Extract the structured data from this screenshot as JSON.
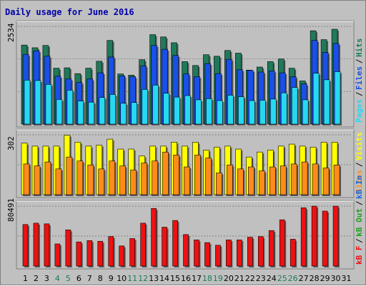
{
  "title": "Daily usage for June 2016",
  "colors": {
    "background": "#c0c0c0",
    "plot_bg": "#c0c0c0",
    "title": "#0000aa",
    "hits": "#1f7a5a",
    "files": "#1a4fe8",
    "pages": "#26d8f2",
    "visits": "#ffff00",
    "sites": "#ff8c1a",
    "kbin": "#1a6ae0",
    "kbout": "#20a020",
    "kbf": "#ee1111",
    "weekend_label": "#1f7a5a",
    "weekday_label": "#000000"
  },
  "chart_data": {
    "type": "bar",
    "title": "Daily usage for June 2016",
    "x": [
      1,
      2,
      3,
      4,
      5,
      6,
      7,
      8,
      9,
      10,
      11,
      12,
      13,
      14,
      15,
      16,
      17,
      18,
      19,
      20,
      21,
      22,
      23,
      24,
      25,
      26,
      27,
      28,
      29,
      30,
      31
    ],
    "weekend_days": [
      4,
      5,
      11,
      12,
      18,
      19,
      25,
      26
    ],
    "panels": [
      {
        "name": "hits-files-pages",
        "max_label": "2534",
        "max": 2534,
        "legend": [
          "Pages",
          "Files",
          "Hits"
        ],
        "series": [
          {
            "name": "Hits",
            "color_key": "hits",
            "values": [
              2050,
              1980,
              2040,
              1450,
              1460,
              1310,
              1450,
              1630,
              2170,
              1300,
              1270,
              1670,
              2320,
              2260,
              2110,
              1620,
              1520,
              1800,
              1760,
              1910,
              1840,
              1400,
              1480,
              1620,
              1690,
              1450,
              1120,
              2420,
              2190,
              2460,
              0
            ]
          },
          {
            "name": "Files",
            "color_key": "files",
            "values": [
              1810,
              1900,
              1760,
              1240,
              1170,
              1080,
              1170,
              1330,
              1740,
              1250,
              1230,
              1510,
              2040,
              1940,
              1780,
              1300,
              1230,
              1570,
              1310,
              1680,
              1410,
              1390,
              1350,
              1380,
              1330,
              1230,
              1040,
              2170,
              1860,
              2090,
              0
            ]
          },
          {
            "name": "Pages",
            "color_key": "pages",
            "values": [
              1140,
              1130,
              1030,
              640,
              880,
              600,
              570,
              690,
              770,
              540,
              560,
              900,
              1010,
              800,
              700,
              740,
              630,
              660,
              610,
              750,
              710,
              610,
              620,
              650,
              810,
              950,
              630,
              1320,
              1150,
              1360,
              0
            ]
          }
        ]
      },
      {
        "name": "visits-sites",
        "max_label": "302",
        "max": 302,
        "legend": [
          "Sites",
          "Visits"
        ],
        "series": [
          {
            "name": "Visits",
            "color_key": "visits",
            "values": [
              260,
              245,
              245,
              245,
              300,
              265,
              245,
              250,
              280,
              230,
              230,
              195,
              245,
              245,
              265,
              245,
              265,
              225,
              240,
              245,
              230,
              190,
              215,
              225,
              245,
              255,
              245,
              240,
              265,
              265,
              0
            ]
          },
          {
            "name": "Sites",
            "color_key": "sites",
            "values": [
              155,
              145,
              165,
              130,
              190,
              170,
              150,
              130,
              170,
              145,
              125,
              160,
              170,
              215,
              200,
              140,
              200,
              185,
              110,
              150,
              130,
              140,
              120,
              140,
              145,
              155,
              165,
              155,
              135,
              150,
              0
            ]
          }
        ]
      },
      {
        "name": "kbf-in-out",
        "max_label": "80491",
        "max": 80491,
        "legend": [
          "kB F",
          "kB Out",
          "kB In"
        ],
        "series": [
          {
            "name": "kB F",
            "color_key": "kbf",
            "values": [
              55800,
              57600,
              56700,
              29700,
              48600,
              32400,
              34200,
              33300,
              39600,
              27000,
              36900,
              57600,
              77400,
              52200,
              61200,
              42300,
              35100,
              31500,
              27900,
              35100,
              35100,
              38700,
              39600,
              47700,
              62100,
              36000,
              78300,
              80491,
              73800,
              80500,
              0
            ]
          }
        ]
      }
    ]
  }
}
